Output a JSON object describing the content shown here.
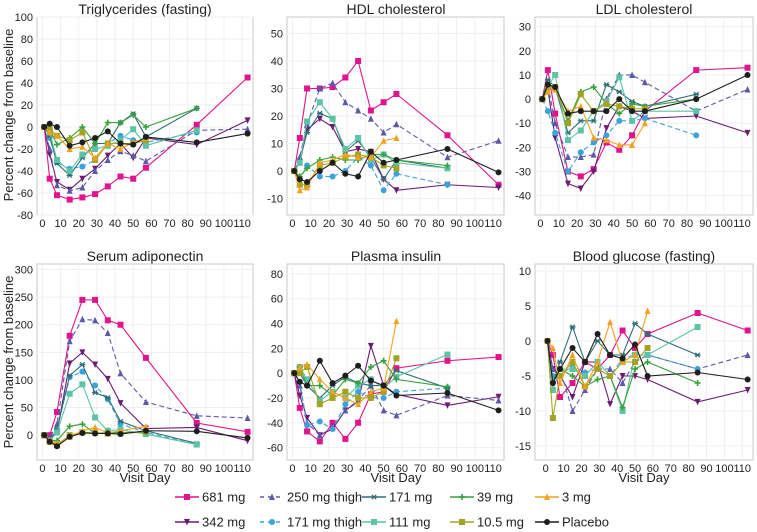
{
  "chart_data": {
    "type": "line",
    "x": [
      1,
      4,
      8,
      15,
      22,
      29,
      36,
      43,
      50,
      57,
      85,
      113
    ],
    "xlabel": "Visit Day",
    "ylabel": "Percent change from baseline",
    "series_styles": [
      {
        "name": "681 mg",
        "color": "#e0148c",
        "marker": "square",
        "dash": false
      },
      {
        "name": "342 mg",
        "color": "#6b1d72",
        "marker": "triangle-down",
        "dash": false
      },
      {
        "name": "250 mg thigh",
        "color": "#5b5aa8",
        "marker": "triangle-up",
        "dash": true
      },
      {
        "name": "171 mg thigh",
        "color": "#3aa3dc",
        "marker": "circle",
        "dash": true
      },
      {
        "name": "171 mg",
        "color": "#2d6e78",
        "marker": "asterisk",
        "dash": false
      },
      {
        "name": "111 mg",
        "color": "#5cc3a6",
        "marker": "square",
        "dash": false
      },
      {
        "name": "39 mg",
        "color": "#36a13a",
        "marker": "plus",
        "dash": false
      },
      {
        "name": "10.5 mg",
        "color": "#a3a321",
        "marker": "square",
        "dash": false
      },
      {
        "name": "3 mg",
        "color": "#f0a21f",
        "marker": "triangle-up",
        "dash": false
      },
      {
        "name": "Placebo",
        "color": "#1e1e1e",
        "marker": "circle",
        "dash": false
      }
    ],
    "panels": [
      {
        "title": "Triglycerides (fasting)",
        "ylim": [
          -80,
          100
        ],
        "yticks": [
          -80,
          -60,
          -40,
          -20,
          0,
          20,
          40,
          60,
          80,
          100
        ],
        "xlim": [
          -3,
          116
        ],
        "xticks": [
          0,
          10,
          20,
          30,
          40,
          50,
          60,
          70,
          80,
          90,
          100,
          110
        ],
        "series": [
          [
            0,
            -47,
            -62,
            -66,
            -64,
            -61,
            -54,
            -45,
            -47,
            -37,
            2,
            45
          ],
          [
            0,
            -25,
            -50,
            -57,
            -47,
            -38,
            -26,
            -15,
            -28,
            -10,
            -16,
            6
          ],
          [
            0,
            -20,
            -53,
            -58,
            -55,
            -40,
            -30,
            -22,
            -26,
            -31,
            -3,
            -2
          ],
          [
            0,
            -10,
            -32,
            -38,
            -36,
            -30,
            -15,
            -8,
            -12,
            -14,
            -5,
            null
          ],
          [
            0,
            -8,
            -33,
            -44,
            -28,
            -15,
            -15,
            4,
            12,
            -9,
            17,
            null
          ],
          [
            0,
            -5,
            -30,
            -40,
            -25,
            -20,
            -17,
            -12,
            -2,
            -17,
            -3,
            null
          ],
          [
            0,
            -2,
            -16,
            -10,
            0,
            -15,
            4,
            4,
            11,
            0,
            17,
            null
          ],
          [
            0,
            -2,
            -8,
            -12,
            -5,
            -30,
            -15,
            -15,
            -15,
            -12,
            null,
            null
          ],
          [
            0,
            -5,
            -8,
            -20,
            -18,
            -28,
            -15,
            -20,
            -14,
            -10,
            null,
            null
          ],
          [
            0,
            3,
            0,
            -17,
            -14,
            -10,
            -4,
            -15,
            -16,
            -9,
            -14,
            -6
          ]
        ]
      },
      {
        "title": "HDL cholesterol",
        "ylim": [
          -16,
          56
        ],
        "yticks": [
          -10,
          0,
          10,
          20,
          30,
          40,
          50
        ],
        "xlim": [
          -3,
          116
        ],
        "xticks": [
          0,
          10,
          20,
          30,
          40,
          50,
          60,
          70,
          80,
          90,
          100,
          110
        ],
        "series": [
          [
            0,
            12,
            30,
            30,
            30.5,
            34,
            40,
            22,
            25,
            28,
            13,
            -5
          ],
          [
            0,
            3,
            15,
            19,
            16,
            7,
            8,
            7,
            -3,
            -7,
            -5,
            -6
          ],
          [
            0,
            5,
            17,
            30,
            32,
            25,
            22,
            19,
            14,
            17,
            5,
            11
          ],
          [
            0,
            -3,
            2,
            -2,
            -2,
            0,
            5,
            2,
            -7,
            -1,
            -5,
            null
          ],
          [
            0,
            4,
            14,
            21,
            19,
            7,
            11,
            5,
            -3,
            4,
            1,
            null
          ],
          [
            0,
            3,
            18,
            25,
            19,
            8,
            12,
            4,
            6,
            3,
            1,
            null
          ],
          [
            0,
            -2,
            1,
            4,
            5,
            4,
            4,
            6,
            6,
            4,
            2,
            null
          ],
          [
            0,
            -5,
            -5,
            2,
            3,
            5,
            6,
            5,
            2,
            1,
            null,
            null
          ],
          [
            0,
            -7,
            -6,
            3,
            4,
            6,
            5,
            5,
            11,
            12,
            null,
            null
          ],
          [
            0,
            -3,
            -4,
            0,
            3,
            -1,
            -2,
            7,
            3,
            4,
            8,
            -0.5
          ]
        ]
      },
      {
        "title": "LDL cholesterol",
        "ylim": [
          -48,
          34
        ],
        "yticks": [
          -40,
          -30,
          -20,
          -10,
          0,
          10,
          20,
          30
        ],
        "xlim": [
          -3,
          116
        ],
        "xticks": [
          0,
          10,
          20,
          30,
          40,
          50,
          60,
          70,
          80,
          90,
          100,
          110
        ],
        "series": [
          [
            0,
            12,
            -6,
            -30,
            -32,
            -29,
            -18,
            -21,
            -15,
            -5,
            12,
            13
          ],
          [
            0,
            4,
            -16,
            -35,
            -37,
            -30,
            -12,
            -3,
            -5,
            -8,
            -7,
            -14
          ],
          [
            0,
            6,
            -10,
            -24,
            -24,
            -23,
            0,
            10,
            10,
            7,
            -5,
            4
          ],
          [
            0,
            -5,
            -14,
            -30,
            -22,
            -18,
            -15,
            -9,
            -9,
            -8,
            -15,
            null
          ],
          [
            0,
            8,
            5,
            -14,
            -9,
            -9,
            6,
            3,
            -1,
            -3,
            2,
            null
          ],
          [
            0,
            5,
            10,
            -17,
            -13,
            -5,
            -1,
            9,
            -9,
            -5,
            -5,
            null
          ],
          [
            0,
            6,
            5,
            -9,
            3,
            5,
            -2,
            -6,
            -2,
            -3,
            0,
            null
          ],
          [
            0,
            5,
            5,
            -10,
            2,
            -5,
            -2,
            -3,
            -4,
            -4,
            null,
            null
          ],
          [
            0,
            3,
            4,
            -5,
            -3,
            -16,
            -17,
            -19,
            -19,
            -10,
            null,
            null
          ],
          [
            0,
            6,
            5,
            -6,
            -5,
            -5,
            -5,
            0,
            -5,
            -5,
            0,
            10
          ]
        ]
      },
      {
        "title": "Serum adiponectin",
        "ylim": [
          -45,
          310
        ],
        "yticks": [
          0,
          50,
          100,
          150,
          200,
          250,
          300
        ],
        "xlim": [
          -3,
          116
        ],
        "xticks": [
          0,
          10,
          20,
          30,
          40,
          50,
          60,
          70,
          80,
          90,
          100,
          110
        ],
        "series": [
          [
            0,
            0,
            42,
            180,
            245,
            245,
            208,
            200,
            null,
            140,
            22,
            6
          ],
          [
            0,
            -10,
            5,
            130,
            150,
            128,
            102,
            58,
            null,
            12,
            14,
            -10
          ],
          [
            0,
            -5,
            20,
            170,
            210,
            208,
            185,
            112,
            null,
            60,
            35,
            31
          ],
          [
            0,
            -10,
            10,
            105,
            115,
            90,
            65,
            20,
            null,
            5,
            -17,
            null
          ],
          [
            0,
            -10,
            10,
            108,
            128,
            77,
            68,
            25,
            null,
            8,
            -15,
            null
          ],
          [
            0,
            -10,
            5,
            75,
            92,
            32,
            8,
            10,
            null,
            2,
            -17,
            null
          ],
          [
            0,
            -10,
            -10,
            16,
            20,
            3,
            5,
            5,
            null,
            5,
            null,
            null
          ],
          [
            0,
            -12,
            -18,
            0,
            5,
            5,
            3,
            3,
            null,
            6,
            null,
            null
          ],
          [
            0,
            -10,
            -15,
            -3,
            8,
            14,
            4,
            8,
            null,
            16,
            null,
            null
          ],
          [
            0,
            -12,
            -20,
            -3,
            4,
            3,
            3,
            2,
            null,
            8,
            7,
            -5
          ]
        ]
      },
      {
        "title": "Plasma insulin",
        "ylim": [
          -70,
          88
        ],
        "yticks": [
          -60,
          -40,
          -20,
          0,
          20,
          40,
          60,
          80
        ],
        "xlim": [
          -3,
          116
        ],
        "xticks": [
          0,
          10,
          20,
          30,
          40,
          50,
          60,
          70,
          80,
          90,
          100,
          110
        ],
        "series": [
          [
            0,
            -28,
            -47,
            -55,
            -40,
            -53,
            -40,
            -17,
            -15,
            4,
            10,
            13
          ],
          [
            0,
            -18,
            -36,
            -50,
            -45,
            -30,
            -23,
            22,
            -10,
            -17,
            -26,
            -19
          ],
          [
            0,
            -10,
            -40,
            -50,
            -44,
            -30,
            -22,
            -10,
            -30,
            -34,
            -18,
            -22
          ],
          [
            0,
            -7,
            -42,
            -39,
            -45,
            -25,
            -15,
            -20,
            -20,
            -15,
            -12,
            null
          ],
          [
            0,
            0,
            -10,
            -20,
            -10,
            -3,
            -8,
            -10,
            -10,
            2,
            -12,
            null
          ],
          [
            0,
            5,
            -5,
            -22,
            -15,
            -20,
            -10,
            -5,
            -12,
            -3,
            15,
            null
          ],
          [
            0,
            5,
            -10,
            -10,
            -18,
            -5,
            -8,
            5,
            10,
            -5,
            -11,
            null
          ],
          [
            0,
            0,
            5,
            -25,
            -20,
            -15,
            -20,
            -20,
            -15,
            12,
            null,
            null
          ],
          [
            0,
            5,
            7,
            -5,
            -15,
            -20,
            -25,
            -15,
            -12,
            42,
            null,
            null
          ],
          [
            0,
            -7,
            -10,
            10,
            -8,
            -2,
            6,
            -6,
            -10,
            -18,
            -16,
            -30
          ]
        ]
      },
      {
        "title": "Blood glucose (fasting)",
        "ylim": [
          -17,
          11
        ],
        "yticks": [
          -15,
          -10,
          -5,
          0,
          5,
          10
        ],
        "xlim": [
          -6,
          116
        ],
        "xticks": [
          0,
          10,
          20,
          30,
          40,
          50,
          60,
          70,
          80,
          90,
          100,
          110
        ],
        "series": [
          [
            0,
            -2,
            -8,
            -6,
            -3,
            -4,
            -2,
            1.5,
            -1,
            1,
            4,
            1.5
          ],
          [
            0,
            -4,
            -5,
            -8,
            -3,
            -3,
            -9,
            -5,
            -5,
            -5.5,
            -8.7,
            -7
          ],
          [
            0,
            -4,
            -4,
            -10,
            -7,
            -4,
            -4,
            -6,
            -3,
            -2,
            -4,
            -2
          ],
          [
            0,
            -5,
            -5,
            -3.5,
            -4.5,
            -4,
            -5,
            -2.5,
            -2,
            -2,
            -4,
            null
          ],
          [
            0,
            -6,
            -3,
            2,
            -3,
            0,
            -2,
            -2,
            2.5,
            1,
            -2,
            null
          ],
          [
            0,
            -7,
            -4,
            -4,
            -5,
            -3,
            -5,
            -10,
            -2,
            -2,
            2,
            null
          ],
          [
            0,
            -6,
            -4,
            -5,
            -6.5,
            -5.5,
            -5,
            -9.5,
            -4,
            -3,
            -6,
            null
          ],
          [
            0,
            -11,
            -5,
            -3,
            -6.5,
            -4,
            -5,
            -3,
            -3,
            -1,
            null,
            null
          ],
          [
            0,
            -1,
            -6,
            -2,
            -6.5,
            -3,
            2.7,
            -3,
            -2,
            4.3,
            null,
            null
          ],
          [
            0,
            -6,
            -4,
            -1,
            -3,
            1,
            -2,
            -2.5,
            -0.5,
            -5,
            -4.5,
            -5.5
          ]
        ]
      }
    ],
    "legend": {
      "placement": "bottom",
      "items": [
        "681 mg",
        "250 mg thigh",
        "171 mg",
        "39 mg",
        "3 mg",
        "342 mg",
        "171 mg thigh",
        "111 mg",
        "10.5 mg",
        "Placebo"
      ]
    },
    "grid": true
  }
}
